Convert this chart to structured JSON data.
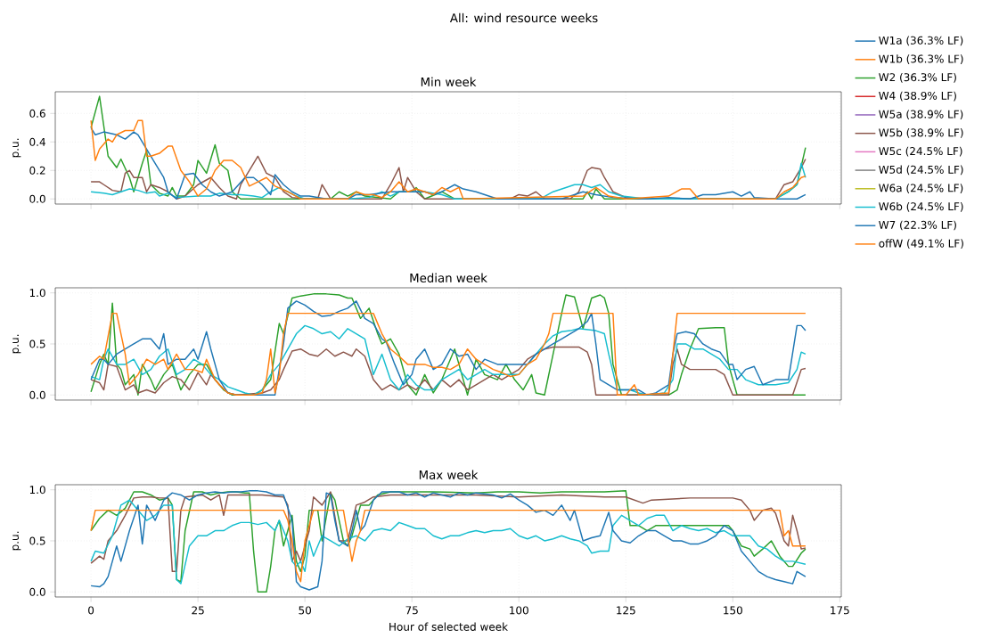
{
  "chart_data": [
    {
      "type": "line",
      "title": "Min week",
      "ylabel": "p.u.",
      "annotations": [
        "All: wind resource weeks"
      ],
      "xlim": [
        -8.35,
        175.35
      ],
      "ylim": [
        -0.036,
        0.752
      ],
      "xticks": [
        0,
        25,
        50,
        75,
        100,
        125,
        150,
        175
      ],
      "yticks": [
        {
          "value": 0,
          "label": "0.0"
        },
        {
          "value": 0.2,
          "label": "0.2"
        },
        {
          "value": 0.4,
          "label": "0.4"
        },
        {
          "value": 0.6,
          "label": "0.6"
        }
      ],
      "tick_labels": "y",
      "grid": true,
      "legend": "right",
      "series": [
        {
          "name": "W1a (36.3% LF)",
          "color": "#1f77b4"
        },
        {
          "name": "W1b (36.3% LF)",
          "color": "#ff7f0e"
        },
        {
          "name": "W2 (36.3% LF)",
          "color": "#2ca02c",
          "x": [
            0,
            2,
            4,
            6,
            7,
            9,
            10,
            12,
            13,
            14,
            16,
            18,
            19,
            20,
            22,
            24,
            25,
            27,
            29,
            30,
            32,
            33,
            35,
            50,
            56,
            58,
            60,
            62,
            64,
            70,
            72,
            75,
            76,
            78,
            82,
            85,
            95,
            110,
            115,
            116,
            117,
            118,
            120,
            140,
            160,
            163,
            165,
            167
          ],
          "values": [
            0.5,
            0.72,
            0.3,
            0.22,
            0.28,
            0.15,
            0.05,
            0.25,
            0.34,
            0.1,
            0.04,
            0.02,
            0.08,
            0.02,
            0.02,
            0.1,
            0.27,
            0.18,
            0.38,
            0.25,
            0.2,
            0.05,
            0,
            0,
            0,
            0.05,
            0.02,
            0.05,
            0.02,
            0,
            0.05,
            0.05,
            0.08,
            0,
            0.05,
            0,
            0,
            0,
            0,
            0.05,
            0,
            0.07,
            0,
            0,
            0,
            0.05,
            0.1,
            0.36
          ]
        },
        {
          "name": "W4 (38.9% LF)",
          "color": "#d62728"
        },
        {
          "name": "W5a (38.9% LF)",
          "color": "#9467bd"
        },
        {
          "name": "W5b (38.9% LF)",
          "color": "#8c564b",
          "x": [
            0,
            2,
            3,
            5,
            7,
            8,
            9,
            10,
            12,
            13,
            14,
            16,
            18,
            20,
            22,
            25,
            28,
            30,
            32,
            34,
            35,
            37,
            39,
            41,
            43,
            45,
            47,
            50,
            53,
            54,
            56,
            68,
            70,
            72,
            73,
            74,
            76,
            78,
            98,
            100,
            102,
            104,
            106,
            112,
            114,
            116,
            117,
            119,
            120,
            122,
            125,
            130,
            160,
            162,
            164,
            166,
            167
          ],
          "values": [
            0.12,
            0.12,
            0.1,
            0.06,
            0.05,
            0.18,
            0.2,
            0.15,
            0.15,
            0.05,
            0.1,
            0.08,
            0.05,
            0,
            0.02,
            0.1,
            0.15,
            0.08,
            0.02,
            0,
            0.1,
            0.2,
            0.3,
            0.18,
            0.15,
            0.05,
            0.01,
            0,
            0,
            0.1,
            0,
            0,
            0.1,
            0.22,
            0.05,
            0.15,
            0.05,
            0,
            0,
            0.03,
            0.02,
            0.05,
            0,
            0,
            0.05,
            0.2,
            0.22,
            0.21,
            0.15,
            0.05,
            0.01,
            0,
            0,
            0.1,
            0.12,
            0.22,
            0.28
          ]
        },
        {
          "name": "W5c (24.5% LF)",
          "color": "#e377c2"
        },
        {
          "name": "W5d (24.5% LF)",
          "color": "#7f7f7f"
        },
        {
          "name": "W6a (24.5% LF)",
          "color": "#bcbd22"
        },
        {
          "name": "W6b (24.5% LF)",
          "color": "#17becf",
          "x": [
            0,
            3,
            5,
            7,
            9,
            11,
            13,
            15,
            16,
            18,
            20,
            25,
            28,
            30,
            33,
            35,
            38,
            40,
            42,
            44,
            46,
            48,
            50,
            60,
            65,
            68,
            70,
            72,
            75,
            78,
            82,
            85,
            105,
            108,
            111,
            113,
            115,
            117,
            119,
            121,
            124,
            130,
            160,
            163,
            165,
            166,
            167
          ],
          "values": [
            0.05,
            0.04,
            0.03,
            0.05,
            0.07,
            0.06,
            0.04,
            0.05,
            0.02,
            0.04,
            0.01,
            0.02,
            0.02,
            0.04,
            0.03,
            0.03,
            0.02,
            0.01,
            0.05,
            0.08,
            0.05,
            0.02,
            0,
            0,
            0.01,
            0.05,
            0.02,
            0.05,
            0.05,
            0.05,
            0.03,
            0,
            0,
            0.05,
            0.08,
            0.1,
            0.1,
            0.08,
            0.1,
            0.05,
            0.02,
            0,
            0,
            0.05,
            0.1,
            0.25,
            0.15
          ]
        },
        {
          "name": "W7 (22.3% LF)",
          "color": "#1f77b4",
          "x": [
            0,
            1,
            3,
            6,
            8,
            10,
            11,
            13,
            15,
            17,
            18,
            20,
            22,
            24,
            26,
            28,
            30,
            33,
            36,
            38,
            40,
            42,
            43,
            45,
            47,
            49,
            51,
            55,
            60,
            62,
            65,
            70,
            75,
            78,
            80,
            82,
            85,
            87,
            90,
            95,
            110,
            115,
            118,
            122,
            130,
            135,
            140,
            143,
            146,
            150,
            152,
            154,
            155,
            160,
            165,
            167
          ],
          "values": [
            0.5,
            0.45,
            0.47,
            0.45,
            0.42,
            0.47,
            0.45,
            0.35,
            0.25,
            0.15,
            0.05,
            0,
            0.17,
            0.18,
            0.1,
            0.05,
            0.02,
            0.05,
            0.15,
            0.15,
            0.1,
            0.03,
            0.17,
            0.1,
            0.05,
            0.02,
            0.02,
            0,
            0,
            0.03,
            0.03,
            0.05,
            0.05,
            0.05,
            0.03,
            0.05,
            0.1,
            0.07,
            0.05,
            0,
            0,
            0.05,
            0.03,
            0.01,
            0,
            0.01,
            0,
            0.03,
            0.03,
            0.05,
            0.02,
            0.05,
            0.01,
            0,
            0,
            0.03
          ]
        },
        {
          "name": "offW (49.1% LF)",
          "color": "#ff7f0e",
          "x": [
            0,
            1,
            2,
            4,
            5,
            6,
            8,
            10,
            11,
            12,
            13,
            14,
            16,
            18,
            19,
            21,
            23,
            25,
            27,
            29,
            31,
            33,
            35,
            37,
            39,
            41,
            43,
            46,
            49,
            60,
            62,
            64,
            66,
            68,
            70,
            72,
            74,
            76,
            78,
            80,
            82,
            84,
            86,
            87,
            115,
            118,
            121,
            125,
            135,
            138,
            140,
            142,
            160,
            162,
            164,
            166,
            167
          ],
          "values": [
            0.55,
            0.27,
            0.35,
            0.42,
            0.4,
            0.45,
            0.48,
            0.48,
            0.55,
            0.55,
            0.3,
            0.3,
            0.32,
            0.37,
            0.37,
            0.2,
            0.12,
            0.02,
            0.07,
            0.2,
            0.27,
            0.27,
            0.22,
            0.09,
            0.12,
            0.15,
            0.09,
            0.05,
            0,
            0,
            0.05,
            0.03,
            0.03,
            0.01,
            0.05,
            0.12,
            0.05,
            0.07,
            0.05,
            0.03,
            0.08,
            0.05,
            0.08,
            0,
            0.02,
            0.08,
            0.02,
            0,
            0.02,
            0.07,
            0.07,
            0,
            0,
            0.05,
            0.08,
            0.15,
            0.16
          ]
        }
      ]
    },
    {
      "type": "line",
      "title": "Median week",
      "ylabel": "p.u.",
      "xlim": [
        -8.35,
        175.35
      ],
      "ylim": [
        -0.05,
        1.05
      ],
      "xticks": [
        0,
        25,
        50,
        75,
        100,
        125,
        150,
        175
      ],
      "yticks": [
        {
          "value": 0,
          "label": "0.0"
        },
        {
          "value": 0.5,
          "label": "0.5"
        },
        {
          "value": 1,
          "label": "1.0"
        }
      ],
      "tick_labels": "y",
      "grid": true,
      "series": [
        {
          "color": "#2ca02c",
          "x": [
            0,
            2,
            3,
            4,
            5,
            6,
            7,
            8,
            10,
            11,
            12,
            14,
            15,
            17,
            19,
            21,
            23,
            25,
            27,
            29,
            31,
            33,
            38,
            40,
            42,
            44,
            45,
            47,
            49,
            52,
            55,
            58,
            60,
            61,
            63,
            65,
            67,
            68,
            70,
            72,
            74,
            76,
            78,
            80,
            82,
            85,
            86,
            88,
            90,
            92,
            95,
            97,
            99,
            101,
            103,
            104,
            106,
            108,
            110,
            111,
            113,
            115,
            117,
            119,
            120,
            121,
            122,
            124,
            135,
            137,
            138,
            140,
            142,
            146,
            148,
            149,
            151,
            167
          ],
          "values": [
            0.03,
            0.3,
            0.4,
            0.3,
            0.9,
            0.3,
            0.25,
            0.1,
            0.2,
            0,
            0.3,
            0.15,
            0.05,
            0.2,
            0.3,
            0.05,
            0.2,
            0.3,
            0.3,
            0.15,
            0.05,
            0,
            0,
            0.05,
            0.15,
            0.7,
            0.6,
            0.95,
            0.97,
            0.99,
            0.99,
            0.98,
            0.95,
            0.95,
            0.75,
            0.85,
            0.6,
            0.5,
            0.55,
            0.4,
            0.1,
            0,
            0.2,
            0.02,
            0.15,
            0.45,
            0.3,
            0,
            0.35,
            0.2,
            0.15,
            0.3,
            0.15,
            0.05,
            0.2,
            0.02,
            0,
            0.4,
            0.8,
            0.98,
            0.96,
            0.65,
            0.95,
            0.98,
            0.95,
            0.8,
            0.3,
            0,
            0,
            0.05,
            0.2,
            0.45,
            0.65,
            0.66,
            0.66,
            0.3,
            0,
            0
          ]
        },
        {
          "color": "#8c564b",
          "x": [
            0,
            2,
            3,
            4,
            6,
            8,
            10,
            11,
            13,
            15,
            17,
            19,
            21,
            23,
            25,
            27,
            28,
            30,
            32,
            34,
            40,
            42,
            44,
            45,
            47,
            49,
            51,
            53,
            55,
            57,
            59,
            61,
            62,
            64,
            66,
            68,
            70,
            72,
            74,
            76,
            78,
            80,
            82,
            84,
            86,
            88,
            90,
            92,
            94,
            96,
            98,
            100,
            102,
            104,
            106,
            108,
            114,
            116,
            117,
            118,
            135,
            136,
            137,
            138,
            140,
            146,
            148,
            150,
            164,
            166,
            167
          ],
          "values": [
            0.15,
            0.12,
            0.05,
            0.3,
            0.28,
            0.05,
            0.1,
            0.02,
            0.05,
            0.02,
            0.12,
            0.18,
            0.15,
            0.05,
            0.22,
            0.1,
            0.2,
            0.1,
            0.02,
            0,
            0.02,
            0.05,
            0.15,
            0.25,
            0.43,
            0.45,
            0.4,
            0.38,
            0.45,
            0.38,
            0.42,
            0.38,
            0.45,
            0.38,
            0.15,
            0.05,
            0.1,
            0.05,
            0.1,
            0.05,
            0.15,
            0.05,
            0.15,
            0.08,
            0.15,
            0.05,
            0.1,
            0.15,
            0.2,
            0.15,
            0.2,
            0.25,
            0.35,
            0.4,
            0.45,
            0.47,
            0.47,
            0.42,
            0.3,
            0,
            0,
            0.3,
            0.45,
            0.3,
            0.25,
            0.25,
            0.2,
            0,
            0,
            0.25,
            0.26
          ]
        },
        {
          "color": "#17becf",
          "x": [
            0,
            2,
            3,
            4,
            6,
            8,
            10,
            12,
            14,
            16,
            18,
            20,
            22,
            24,
            26,
            28,
            30,
            32,
            34,
            36,
            38,
            40,
            42,
            44,
            46,
            48,
            50,
            52,
            54,
            56,
            58,
            60,
            62,
            64,
            66,
            68,
            70,
            72,
            74,
            76,
            78,
            80,
            82,
            84,
            86,
            88,
            90,
            92,
            94,
            96,
            98,
            100,
            102,
            104,
            106,
            108,
            110,
            112,
            114,
            116,
            118,
            120,
            121,
            123,
            126,
            128,
            130,
            134,
            136,
            137,
            139,
            141,
            143,
            145,
            147,
            149,
            151,
            153,
            156,
            160,
            163,
            165,
            166,
            167
          ],
          "values": [
            0.18,
            0.15,
            0.35,
            0.45,
            0.3,
            0.3,
            0.35,
            0.2,
            0.25,
            0.38,
            0.45,
            0.2,
            0.25,
            0.35,
            0.3,
            0.2,
            0.15,
            0.08,
            0.05,
            0.02,
            0,
            0.05,
            0.2,
            0.3,
            0.45,
            0.6,
            0.68,
            0.65,
            0.6,
            0.62,
            0.55,
            0.65,
            0.6,
            0.55,
            0.2,
            0.4,
            0.15,
            0.05,
            0.2,
            0.1,
            0.05,
            0.05,
            0.15,
            0.2,
            0.25,
            0.15,
            0.2,
            0.25,
            0.2,
            0.2,
            0.2,
            0.2,
            0.3,
            0.4,
            0.5,
            0.58,
            0.62,
            0.63,
            0.65,
            0.64,
            0.63,
            0.6,
            0.4,
            0.05,
            0.05,
            0.02,
            0,
            0.02,
            0.15,
            0.5,
            0.5,
            0.45,
            0.45,
            0.4,
            0.35,
            0.25,
            0.25,
            0.15,
            0.1,
            0.1,
            0.12,
            0.25,
            0.42,
            0.4
          ]
        },
        {
          "color": "#1f77b4",
          "x": [
            0,
            2,
            3,
            4,
            6,
            8,
            10,
            12,
            14,
            16,
            17,
            18,
            20,
            22,
            24,
            25,
            27,
            28,
            30,
            32,
            34,
            43,
            45,
            46,
            48,
            50,
            52,
            54,
            56,
            58,
            60,
            62,
            64,
            66,
            68,
            69,
            71,
            73,
            75,
            76,
            78,
            80,
            82,
            84,
            86,
            88,
            90,
            92,
            95,
            98,
            100,
            102,
            104,
            106,
            108,
            110,
            112,
            114,
            116,
            117,
            118,
            119,
            121,
            123,
            125,
            128,
            130,
            132,
            135,
            136,
            137,
            139,
            141,
            143,
            145,
            147,
            149,
            150,
            151,
            153,
            155,
            157,
            160,
            163,
            165,
            166,
            167
          ],
          "values": [
            0.15,
            0.35,
            0.35,
            0.3,
            0.4,
            0.45,
            0.5,
            0.55,
            0.55,
            0.45,
            0.6,
            0.3,
            0.35,
            0.35,
            0.45,
            0.35,
            0.62,
            0.45,
            0.15,
            0.02,
            0,
            0,
            0.5,
            0.85,
            0.92,
            0.88,
            0.82,
            0.77,
            0.78,
            0.82,
            0.85,
            0.92,
            0.75,
            0.7,
            0.55,
            0.52,
            0.3,
            0.1,
            0.2,
            0.35,
            0.45,
            0.25,
            0.3,
            0.45,
            0.38,
            0.4,
            0.25,
            0.35,
            0.3,
            0.3,
            0.3,
            0.3,
            0.4,
            0.45,
            0.5,
            0.55,
            0.6,
            0.65,
            0.72,
            0.8,
            0.5,
            0.15,
            0.1,
            0.05,
            0.05,
            0.05,
            0,
            0.02,
            0.1,
            0.4,
            0.6,
            0.62,
            0.6,
            0.5,
            0.45,
            0.42,
            0.3,
            0.3,
            0.15,
            0.25,
            0.28,
            0.1,
            0.15,
            0.15,
            0.68,
            0.68,
            0.63
          ]
        },
        {
          "color": "#ff7f0e",
          "x": [
            0,
            2,
            3,
            5,
            6,
            7,
            8,
            9,
            11,
            13,
            15,
            17,
            18,
            20,
            22,
            24,
            26,
            27,
            29,
            30,
            32,
            34,
            38,
            40,
            41,
            42,
            43,
            44,
            45,
            46,
            66,
            68,
            70,
            72,
            74,
            76,
            78,
            80,
            82,
            84,
            86,
            88,
            90,
            92,
            94,
            96,
            98,
            100,
            102,
            104,
            106,
            107,
            108,
            122,
            123,
            125,
            127,
            128,
            135,
            136,
            137,
            167
          ],
          "values": [
            0.3,
            0.38,
            0.35,
            0.8,
            0.8,
            0.6,
            0.4,
            0.1,
            0.2,
            0.35,
            0.3,
            0.35,
            0.25,
            0.4,
            0.25,
            0.25,
            0.22,
            0.35,
            0.15,
            0.1,
            0.02,
            0,
            0,
            0.02,
            0.15,
            0.45,
            0.02,
            0.2,
            0.6,
            0.8,
            0.8,
            0.6,
            0.45,
            0.38,
            0.3,
            0.3,
            0.3,
            0.27,
            0.27,
            0.25,
            0.3,
            0.45,
            0.35,
            0.3,
            0.25,
            0.22,
            0.18,
            0.2,
            0.3,
            0.35,
            0.5,
            0.6,
            0.8,
            0.8,
            0,
            0,
            0.1,
            0,
            0.02,
            0.4,
            0.8,
            0.8
          ]
        }
      ]
    },
    {
      "type": "line",
      "title": "Max week",
      "xlabel": "Hour of selected week",
      "ylabel": "p.u.",
      "xlim": [
        -8.35,
        175.35
      ],
      "ylim": [
        -0.05,
        1.05
      ],
      "xticks": [
        0,
        25,
        50,
        75,
        100,
        125,
        150,
        175
      ],
      "yticks": [
        {
          "value": 0,
          "label": "0.0"
        },
        {
          "value": 0.5,
          "label": "0.5"
        },
        {
          "value": 1,
          "label": "1.0"
        }
      ],
      "grid": true,
      "series": [
        {
          "color": "#2ca02c",
          "x": [
            0,
            2,
            4,
            6,
            8,
            10,
            12,
            14,
            16,
            18,
            19,
            20,
            21,
            22,
            24,
            26,
            28,
            30,
            32,
            34,
            36,
            37,
            38,
            39,
            41,
            42,
            43,
            44,
            45,
            46,
            47,
            48,
            49,
            50,
            51,
            53,
            54,
            56,
            57,
            58,
            59,
            60,
            61,
            63,
            65,
            67,
            70,
            80,
            90,
            95,
            100,
            105,
            110,
            120,
            125,
            126,
            128,
            130,
            132,
            135,
            140,
            145,
            149,
            150,
            152,
            154,
            155,
            157,
            159,
            161,
            163,
            164,
            166,
            167
          ],
          "values": [
            0.6,
            0.72,
            0.8,
            0.75,
            0.82,
            0.98,
            0.98,
            0.95,
            0.9,
            0.92,
            0.85,
            0.12,
            0.1,
            0.6,
            0.98,
            0.98,
            0.95,
            0.97,
            0.98,
            0.98,
            0.97,
            0.97,
            0.4,
            0,
            0,
            0.25,
            0.6,
            0.7,
            0.45,
            0.6,
            0.75,
            0.3,
            0.2,
            0.35,
            0.8,
            0.8,
            0.5,
            0.97,
            0.9,
            0.7,
            0.5,
            0.45,
            0.55,
            0.85,
            0.85,
            0.95,
            0.98,
            0.98,
            0.97,
            0.98,
            0.98,
            0.97,
            0.98,
            0.98,
            0.99,
            0.65,
            0.65,
            0.6,
            0.65,
            0.65,
            0.65,
            0.65,
            0.65,
            0.6,
            0.45,
            0.42,
            0.35,
            0.42,
            0.5,
            0.35,
            0.25,
            0.25,
            0.38,
            0.42
          ]
        },
        {
          "color": "#8c564b",
          "x": [
            0,
            2,
            3,
            4,
            6,
            8,
            10,
            12,
            14,
            16,
            18,
            19,
            20,
            21,
            22,
            26,
            28,
            30,
            31,
            32,
            35,
            40,
            45,
            46,
            47,
            48,
            49,
            51,
            52,
            54,
            56,
            58,
            60,
            62,
            64,
            66,
            70,
            80,
            90,
            100,
            110,
            120,
            125,
            127,
            129,
            131,
            140,
            150,
            152,
            154,
            155,
            157,
            159,
            160,
            162,
            163,
            164,
            165,
            166,
            167
          ],
          "values": [
            0.28,
            0.35,
            0.32,
            0.5,
            0.6,
            0.75,
            0.92,
            0.93,
            0.93,
            0.92,
            0.92,
            0.2,
            0.2,
            0.8,
            0.93,
            0.95,
            0.9,
            0.95,
            0.75,
            0.95,
            0.95,
            0.95,
            0.93,
            0.85,
            0.3,
            0.4,
            0.3,
            0.6,
            0.93,
            0.85,
            0.98,
            0.5,
            0.5,
            0.85,
            0.88,
            0.93,
            0.95,
            0.95,
            0.95,
            0.93,
            0.95,
            0.93,
            0.93,
            0.9,
            0.87,
            0.9,
            0.92,
            0.92,
            0.9,
            0.8,
            0.7,
            0.8,
            0.82,
            0.77,
            0.5,
            0.45,
            0.75,
            0.6,
            0.42,
            0.43
          ]
        },
        {
          "color": "#17becf",
          "x": [
            0,
            1,
            3,
            5,
            7,
            9,
            11,
            13,
            15,
            17,
            19,
            20,
            21,
            23,
            25,
            27,
            29,
            31,
            33,
            35,
            37,
            39,
            41,
            43,
            44,
            46,
            47,
            48,
            49,
            50,
            51,
            52,
            54,
            56,
            58,
            60,
            62,
            64,
            66,
            68,
            70,
            72,
            74,
            76,
            78,
            80,
            82,
            84,
            86,
            88,
            90,
            92,
            94,
            96,
            98,
            100,
            102,
            104,
            106,
            108,
            110,
            112,
            114,
            116,
            117,
            119,
            121,
            122,
            124,
            126,
            128,
            130,
            132,
            134,
            136,
            138,
            140,
            142,
            144,
            146,
            148,
            150,
            152,
            154,
            156,
            158,
            160,
            162,
            164,
            167
          ],
          "values": [
            0.3,
            0.4,
            0.38,
            0.55,
            0.85,
            0.9,
            0.8,
            0.7,
            0.75,
            0.85,
            0.85,
            0.12,
            0.08,
            0.45,
            0.55,
            0.55,
            0.6,
            0.6,
            0.65,
            0.68,
            0.68,
            0.66,
            0.68,
            0.6,
            0.7,
            0.5,
            0.3,
            0.25,
            0.3,
            0.2,
            0.5,
            0.35,
            0.55,
            0.5,
            0.45,
            0.52,
            0.55,
            0.5,
            0.6,
            0.62,
            0.6,
            0.68,
            0.65,
            0.62,
            0.62,
            0.55,
            0.52,
            0.55,
            0.55,
            0.58,
            0.6,
            0.58,
            0.6,
            0.6,
            0.62,
            0.55,
            0.52,
            0.55,
            0.5,
            0.52,
            0.55,
            0.52,
            0.5,
            0.45,
            0.38,
            0.4,
            0.4,
            0.65,
            0.75,
            0.7,
            0.65,
            0.72,
            0.75,
            0.75,
            0.6,
            0.65,
            0.62,
            0.6,
            0.62,
            0.58,
            0.6,
            0.55,
            0.55,
            0.55,
            0.45,
            0.42,
            0.35,
            0.3,
            0.3,
            0.27
          ]
        },
        {
          "color": "#1f77b4",
          "x": [
            0,
            2,
            3,
            4,
            6,
            7,
            9,
            11,
            12,
            13,
            15,
            17,
            19,
            21,
            23,
            25,
            27,
            29,
            31,
            33,
            35,
            37,
            39,
            41,
            43,
            45,
            47,
            48,
            49,
            51,
            53,
            54,
            55,
            56,
            57,
            58,
            60,
            61,
            62,
            63,
            64,
            66,
            68,
            70,
            72,
            74,
            76,
            78,
            80,
            82,
            84,
            86,
            88,
            90,
            94,
            96,
            98,
            100,
            102,
            104,
            106,
            108,
            110,
            112,
            113,
            115,
            117,
            119,
            121,
            122,
            124,
            126,
            128,
            130,
            132,
            134,
            136,
            138,
            140,
            142,
            144,
            146,
            148,
            150,
            152,
            154,
            156,
            158,
            160,
            162,
            164,
            165,
            167
          ],
          "values": [
            0.06,
            0.05,
            0.08,
            0.15,
            0.45,
            0.3,
            0.6,
            0.85,
            0.47,
            0.85,
            0.7,
            0.9,
            0.97,
            0.95,
            0.9,
            0.95,
            0.97,
            0.98,
            0.97,
            0.98,
            0.98,
            0.99,
            0.99,
            0.98,
            0.95,
            0.95,
            0.7,
            0.1,
            0.05,
            0.02,
            0.05,
            0.3,
            0.97,
            0.95,
            0.7,
            0.5,
            0.45,
            0.6,
            0.8,
            0.6,
            0.65,
            0.9,
            0.98,
            0.98,
            0.98,
            0.95,
            0.97,
            0.93,
            0.97,
            0.95,
            0.93,
            0.97,
            0.95,
            0.97,
            0.95,
            0.92,
            0.96,
            0.9,
            0.85,
            0.78,
            0.8,
            0.75,
            0.85,
            0.7,
            0.8,
            0.5,
            0.53,
            0.55,
            0.78,
            0.6,
            0.5,
            0.48,
            0.55,
            0.6,
            0.6,
            0.55,
            0.5,
            0.5,
            0.47,
            0.47,
            0.5,
            0.55,
            0.65,
            0.6,
            0.4,
            0.3,
            0.2,
            0.15,
            0.12,
            0.1,
            0.08,
            0.2,
            0.15
          ]
        },
        {
          "color": "#ff7f0e",
          "x": [
            0,
            1,
            45,
            46,
            47,
            48,
            49,
            50,
            52,
            59,
            61,
            62,
            63,
            64,
            161,
            162,
            163,
            164,
            167
          ],
          "values": [
            0.6,
            0.8,
            0.8,
            0.7,
            0.5,
            0.2,
            0.1,
            0.5,
            0.8,
            0.8,
            0.3,
            0.5,
            0.6,
            0.8,
            0.8,
            0.55,
            0.6,
            0.45,
            0.45
          ]
        }
      ]
    }
  ]
}
